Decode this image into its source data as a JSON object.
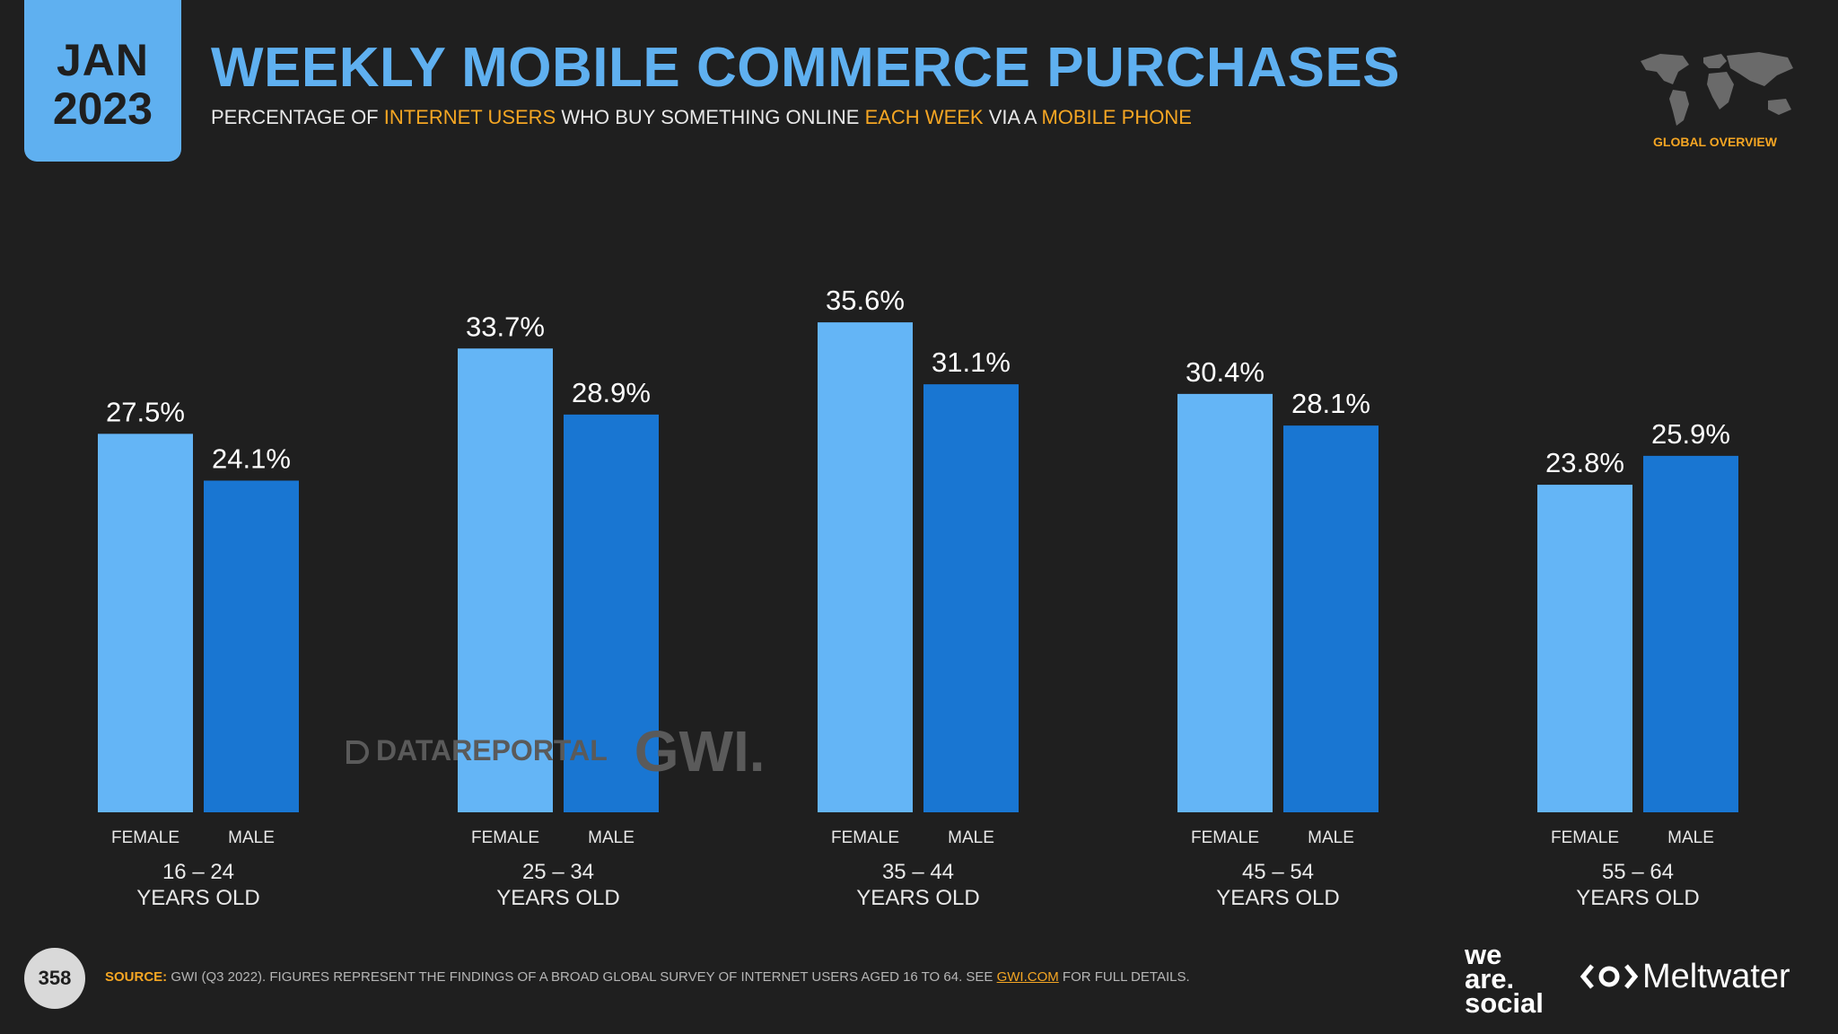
{
  "header": {
    "month": "JAN",
    "year": "2023",
    "title": "WEEKLY MOBILE COMMERCE PURCHASES",
    "subtitle_parts": [
      "PERCENTAGE OF ",
      "INTERNET USERS",
      " WHO BUY SOMETHING ONLINE ",
      "EACH WEEK",
      " VIA A ",
      "MOBILE PHONE"
    ],
    "global_label": "GLOBAL OVERVIEW"
  },
  "chart_data": {
    "type": "bar",
    "title": "WEEKLY MOBILE COMMERCE PURCHASES",
    "categories": [
      "16 – 24",
      "25 – 34",
      "35 – 44",
      "45 – 54",
      "55 – 64"
    ],
    "category_suffix": "YEARS OLD",
    "series": [
      {
        "name": "FEMALE",
        "values": [
          27.5,
          33.7,
          35.6,
          30.4,
          23.8
        ],
        "color": "#64b5f6"
      },
      {
        "name": "MALE",
        "values": [
          24.1,
          28.9,
          31.1,
          28.1,
          25.9
        ],
        "color": "#1976d2"
      }
    ],
    "value_suffix": "%",
    "ylim": [
      0,
      45
    ],
    "grid": false
  },
  "watermark": {
    "brand1": "DATAREPORTAL",
    "brand2": "GWI."
  },
  "footer": {
    "page_number": "358",
    "source_label": "SOURCE:",
    "source_text": " GWI (Q3 2022). FIGURES REPRESENT THE FINDINGS OF A BROAD GLOBAL SURVEY OF INTERNET USERS AGED 16 TO 64. SEE ",
    "source_link": "GWI.COM",
    "source_end": " FOR FULL DETAILS.",
    "logo1_lines": [
      "we",
      "are.",
      "social"
    ],
    "logo2": "Meltwater"
  },
  "colors": {
    "accent": "#5fb0f0",
    "highlight": "#f5a623",
    "background": "#1f1f1f"
  }
}
